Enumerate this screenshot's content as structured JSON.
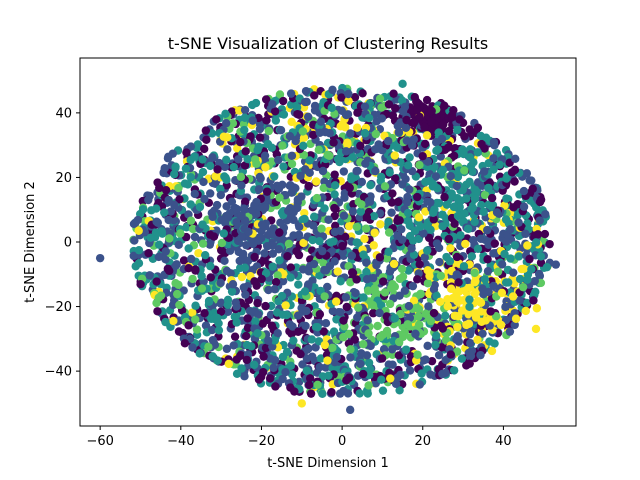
{
  "chart_data": {
    "type": "scatter",
    "title": "t-SNE Visualization of Clustering Results",
    "xlabel": "t-SNE Dimension 1",
    "ylabel": "t-SNE Dimension 2",
    "xlim": [
      -65,
      58
    ],
    "ylim": [
      -57,
      57
    ],
    "xticks": [
      -60,
      -40,
      -20,
      0,
      20,
      40
    ],
    "yticks": [
      -40,
      -20,
      0,
      20,
      40
    ],
    "grid": false,
    "legend": "none",
    "colormap": "viridis",
    "cluster_colors": [
      "#440154",
      "#3b528b",
      "#21918c",
      "#5ec962",
      "#fde725"
    ],
    "point_count_approx": 3000,
    "distribution": {
      "shape": "roughly circular cloud",
      "center": [
        0,
        0
      ],
      "radius_approx": 52
    },
    "dense_regions": [
      {
        "cluster": 0,
        "x": 22,
        "y": 38,
        "note": "dark purple clump at top-right"
      },
      {
        "cluster": 2,
        "x": 30,
        "y": 15,
        "note": "teal region on right side"
      },
      {
        "cluster": 3,
        "x": 15,
        "y": -22,
        "note": "light green region lower center-right"
      },
      {
        "cluster": 4,
        "x": 32,
        "y": -20,
        "note": "yellow points lower right"
      },
      {
        "cluster": 1,
        "x": -20,
        "y": 5,
        "note": "blue points spread on left"
      }
    ],
    "outliers": [
      {
        "x": -60,
        "y": -5
      },
      {
        "x": 53,
        "y": -7
      },
      {
        "x": 2,
        "y": -52
      },
      {
        "x": -10,
        "y": -50
      },
      {
        "x": 15,
        "y": 49
      }
    ]
  }
}
